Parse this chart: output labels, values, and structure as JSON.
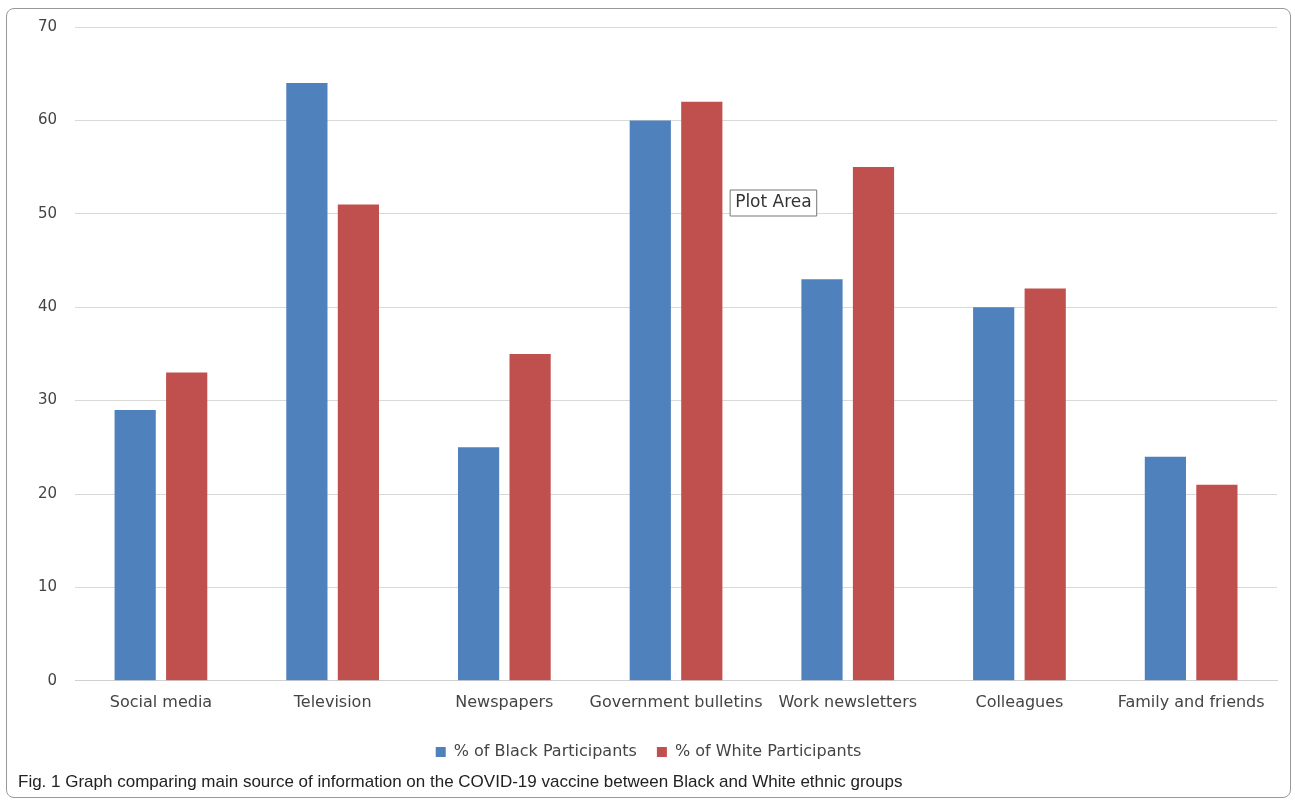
{
  "chart_data": {
    "type": "bar",
    "categories": [
      "Social media",
      "Television",
      "Newspapers",
      "Government bulletins",
      "Work newsletters",
      "Colleagues",
      "Family and friends"
    ],
    "series": [
      {
        "name": "% of Black Participants",
        "color": "#4f81bd",
        "values": [
          29,
          64,
          25,
          60,
          43,
          40,
          24
        ]
      },
      {
        "name": "% of White Participants",
        "color": "#c0504d",
        "values": [
          33,
          51,
          35,
          62,
          55,
          42,
          21
        ]
      }
    ],
    "ylim": [
      0,
      70
    ],
    "yticks": [
      0,
      10,
      20,
      30,
      40,
      50,
      60,
      70
    ],
    "grid": "y",
    "legend": "bottom",
    "annotations": [
      "Plot Area",
      "Fig. 1  Graph comparing main source of information on the COVID-19 vaccine between Black and White ethnic groups"
    ]
  }
}
